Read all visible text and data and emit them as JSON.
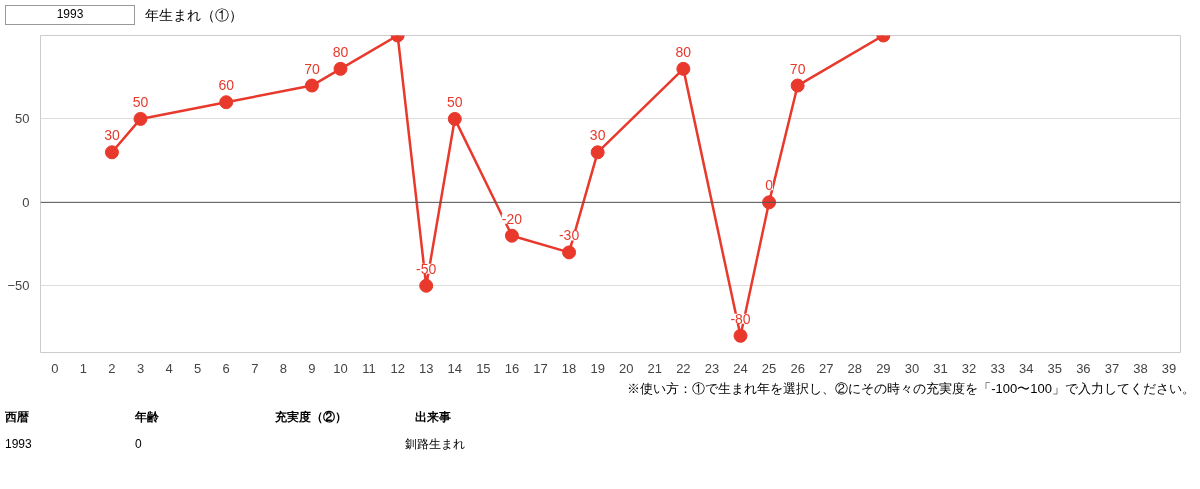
{
  "chart_data": {
    "type": "line",
    "x": [
      2,
      3,
      6,
      9,
      10,
      12,
      13,
      14,
      16,
      18,
      19,
      22,
      24,
      25,
      26,
      29
    ],
    "series": [
      {
        "color": "#e8392c",
        "values": [
          30,
          50,
          60,
          70,
          80,
          100,
          -50,
          50,
          -20,
          -30,
          30,
          80,
          -80,
          0,
          70,
          100
        ],
        "value_labels": [
          "30",
          "50",
          "60",
          "70",
          "80",
          null,
          "-50",
          "50",
          "-20",
          "-30",
          "30",
          "80",
          "-80",
          "0",
          "70",
          null
        ]
      }
    ],
    "xlim": [
      -0.5,
      39.4
    ],
    "xticks": [
      0,
      1,
      2,
      3,
      4,
      5,
      6,
      7,
      8,
      9,
      10,
      11,
      12,
      13,
      14,
      15,
      16,
      17,
      18,
      19,
      20,
      21,
      22,
      23,
      24,
      25,
      26,
      27,
      28,
      29,
      30,
      31,
      32,
      33,
      34,
      35,
      36,
      37,
      38,
      39
    ],
    "ylim": [
      -90,
      100
    ],
    "yticks": [
      -50,
      0,
      50
    ],
    "grid": "y",
    "marker": "circle",
    "line_style": "solid",
    "ref_lines": [
      {
        "axis": "y",
        "value": 0,
        "color": "#555555"
      }
    ],
    "annotations": [
      "1993",
      "年生まれ（①）",
      "※使い方：①で生まれ年を選択し、②にその時々の充実度を「-100〜100」で入力してください。",
      "西暦",
      "年齢",
      "充実度（②）",
      "出来事",
      "1993",
      "0",
      "釧路生まれ"
    ]
  }
}
